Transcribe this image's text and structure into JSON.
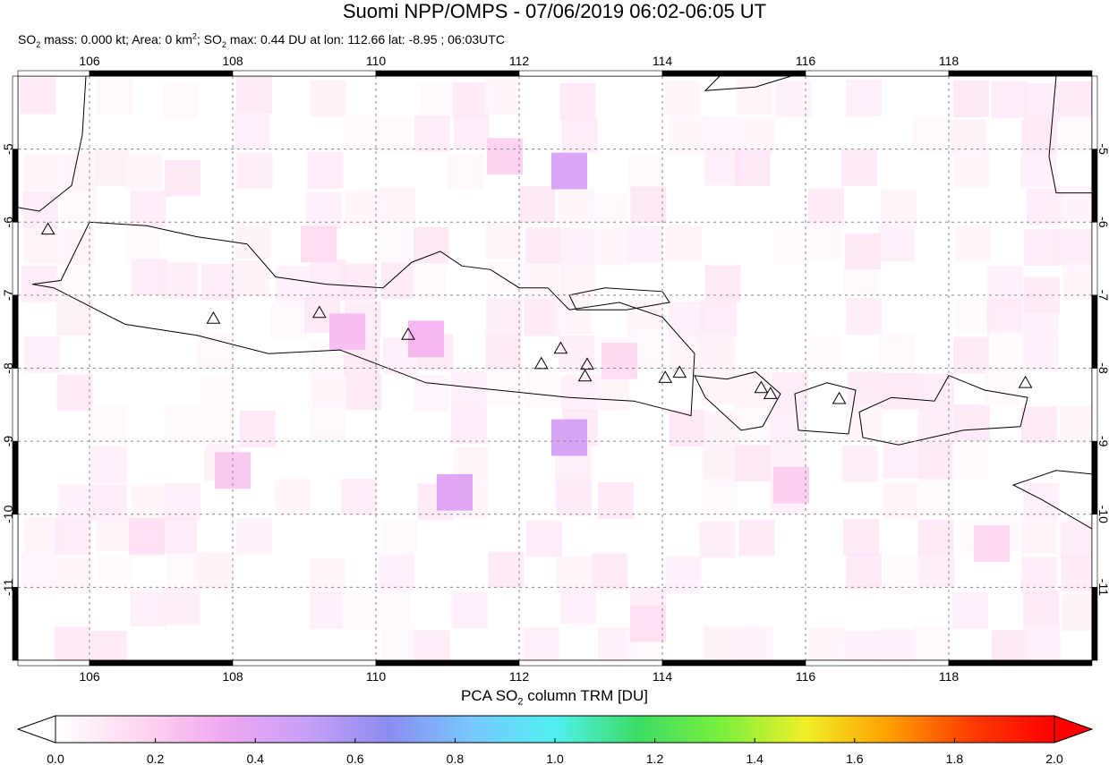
{
  "title": "Suomi NPP/OMPS - 07/06/2019 06:02-06:05 UT",
  "subtitle": {
    "p1": "SO",
    "p1_sub": "2",
    "p2": " mass: 0.000 kt; Area: 0 km",
    "p2_sup": "2",
    "p3": "; SO",
    "p3_sub": "2",
    "p4": " max: 0.44 DU at lon: 112.66 lat: -8.95 ; 06:03UTC"
  },
  "map": {
    "lon_range": [
      105,
      120
    ],
    "lat_range": [
      -12,
      -4
    ],
    "lon_ticks": [
      "106",
      "108",
      "110",
      "112",
      "114",
      "116",
      "118"
    ],
    "lat_ticks": [
      "-5",
      "-6",
      "-7",
      "-8",
      "-9",
      "-10",
      "-11"
    ],
    "grid": true,
    "volcano_marker": "triangle-icon",
    "volcanoes": [
      {
        "lon": 105.42,
        "lat": -6.1
      },
      {
        "lon": 107.73,
        "lat": -7.32
      },
      {
        "lon": 109.21,
        "lat": -7.24
      },
      {
        "lon": 110.45,
        "lat": -7.54
      },
      {
        "lon": 112.31,
        "lat": -7.94
      },
      {
        "lon": 112.58,
        "lat": -7.73
      },
      {
        "lon": 112.95,
        "lat": -7.95
      },
      {
        "lon": 112.92,
        "lat": -8.11
      },
      {
        "lon": 114.04,
        "lat": -8.13
      },
      {
        "lon": 114.24,
        "lat": -8.06
      },
      {
        "lon": 115.38,
        "lat": -8.27
      },
      {
        "lon": 115.51,
        "lat": -8.35
      },
      {
        "lon": 116.47,
        "lat": -8.42
      },
      {
        "lon": 119.07,
        "lat": -8.2
      }
    ],
    "so2_cells": [
      {
        "lon": 110.7,
        "lat": -7.6,
        "v": 0.28
      },
      {
        "lon": 112.7,
        "lat": -5.3,
        "v": 0.42
      },
      {
        "lon": 112.7,
        "lat": -8.95,
        "v": 0.44
      },
      {
        "lon": 111.1,
        "lat": -9.7,
        "v": 0.4
      },
      {
        "lon": 109.6,
        "lat": -7.5,
        "v": 0.25
      },
      {
        "lon": 108.0,
        "lat": -9.4,
        "v": 0.22
      },
      {
        "lon": 111.8,
        "lat": -5.1,
        "v": 0.18
      },
      {
        "lon": 115.8,
        "lat": -9.6,
        "v": 0.2
      },
      {
        "lon": 113.4,
        "lat": -7.9,
        "v": 0.15
      },
      {
        "lon": 106.8,
        "lat": -10.3,
        "v": 0.12
      },
      {
        "lon": 118.6,
        "lat": -10.4,
        "v": 0.16
      },
      {
        "lon": 109.2,
        "lat": -6.3,
        "v": 0.14
      },
      {
        "lon": 113.8,
        "lat": -11.5,
        "v": 0.13
      },
      {
        "lon": 107.3,
        "lat": -5.4,
        "v": 0.1
      },
      {
        "lon": 116.8,
        "lat": -6.4,
        "v": 0.1
      },
      {
        "lon": 119.3,
        "lat": -7.0,
        "v": 0.09
      }
    ],
    "land": [
      {
        "name": "java",
        "pts": [
          [
            105.2,
            -6.85
          ],
          [
            105.6,
            -6.8
          ],
          [
            106.0,
            -6.0
          ],
          [
            106.8,
            -6.05
          ],
          [
            107.5,
            -6.2
          ],
          [
            108.2,
            -6.3
          ],
          [
            108.6,
            -6.75
          ],
          [
            109.3,
            -6.85
          ],
          [
            110.1,
            -6.9
          ],
          [
            110.5,
            -6.55
          ],
          [
            110.9,
            -6.4
          ],
          [
            111.2,
            -6.6
          ],
          [
            111.6,
            -6.65
          ],
          [
            112.0,
            -6.9
          ],
          [
            112.4,
            -6.9
          ],
          [
            112.7,
            -7.2
          ],
          [
            113.4,
            -7.1
          ],
          [
            114.0,
            -7.3
          ],
          [
            114.45,
            -7.8
          ],
          [
            114.4,
            -8.65
          ],
          [
            113.6,
            -8.45
          ],
          [
            112.7,
            -8.4
          ],
          [
            111.7,
            -8.3
          ],
          [
            110.7,
            -8.2
          ],
          [
            109.5,
            -7.75
          ],
          [
            108.5,
            -7.8
          ],
          [
            107.5,
            -7.55
          ],
          [
            106.5,
            -7.4
          ],
          [
            105.5,
            -6.9
          ]
        ]
      },
      {
        "name": "madura",
        "pts": [
          [
            112.7,
            -7.0
          ],
          [
            113.2,
            -6.9
          ],
          [
            114.0,
            -6.95
          ],
          [
            114.1,
            -7.1
          ],
          [
            113.5,
            -7.2
          ],
          [
            112.8,
            -7.2
          ]
        ]
      },
      {
        "name": "bali",
        "pts": [
          [
            114.45,
            -8.1
          ],
          [
            114.9,
            -8.15
          ],
          [
            115.3,
            -8.05
          ],
          [
            115.65,
            -8.35
          ],
          [
            115.4,
            -8.8
          ],
          [
            115.1,
            -8.85
          ],
          [
            114.6,
            -8.4
          ]
        ]
      },
      {
        "name": "lombok",
        "pts": [
          [
            115.85,
            -8.35
          ],
          [
            116.3,
            -8.2
          ],
          [
            116.7,
            -8.3
          ],
          [
            116.6,
            -8.9
          ],
          [
            115.9,
            -8.85
          ]
        ]
      },
      {
        "name": "sumbawa",
        "pts": [
          [
            116.75,
            -8.6
          ],
          [
            117.2,
            -8.4
          ],
          [
            117.8,
            -8.45
          ],
          [
            118.0,
            -8.1
          ],
          [
            118.5,
            -8.3
          ],
          [
            119.1,
            -8.4
          ],
          [
            119.0,
            -8.8
          ],
          [
            118.2,
            -8.85
          ],
          [
            117.3,
            -9.05
          ],
          [
            116.8,
            -8.95
          ]
        ]
      },
      {
        "name": "sumba",
        "pts": [
          [
            118.9,
            -9.6
          ],
          [
            119.5,
            -9.4
          ],
          [
            120.0,
            -9.45
          ],
          [
            120.0,
            -10.2
          ],
          [
            119.3,
            -9.8
          ]
        ]
      },
      {
        "name": "sumatra",
        "pts": [
          [
            105.0,
            -4.0
          ],
          [
            105.95,
            -4.0
          ],
          [
            105.9,
            -4.8
          ],
          [
            105.75,
            -5.5
          ],
          [
            105.3,
            -5.85
          ],
          [
            105.0,
            -5.8
          ]
        ]
      },
      {
        "name": "borneo",
        "pts": [
          [
            114.8,
            -4.0
          ],
          [
            115.8,
            -4.0
          ],
          [
            115.3,
            -4.15
          ],
          [
            114.6,
            -4.2
          ]
        ]
      },
      {
        "name": "sulawesi",
        "pts": [
          [
            119.5,
            -4.0
          ],
          [
            120.0,
            -4.0
          ],
          [
            120.0,
            -5.6
          ],
          [
            119.5,
            -5.6
          ],
          [
            119.4,
            -5.1
          ]
        ]
      }
    ]
  },
  "colorbar": {
    "label_pre": "PCA SO",
    "label_sub": "2",
    "label_post": " column TRM [DU]",
    "ticks": [
      "0.0",
      "0.2",
      "0.4",
      "0.6",
      "0.8",
      "1.0",
      "1.2",
      "1.4",
      "1.6",
      "1.8",
      "2.0"
    ],
    "range": [
      0,
      2
    ],
    "colors": [
      "#ffffff",
      "#ffd8f0",
      "#f0a8f0",
      "#c8a0f8",
      "#8c8cf0",
      "#78c8ff",
      "#50f0f0",
      "#3cdc64",
      "#78f03c",
      "#f0f028",
      "#ffa000",
      "#ff3c00",
      "#ff0000"
    ]
  }
}
